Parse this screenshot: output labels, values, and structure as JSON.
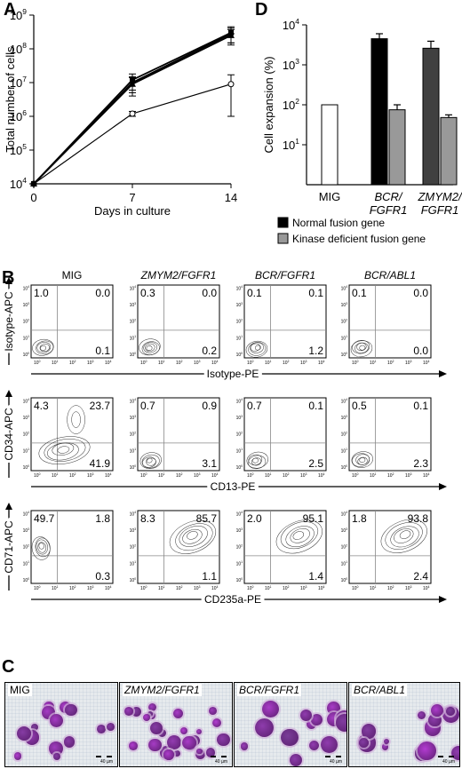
{
  "figure": {
    "panel_labels": {
      "A": "A",
      "B": "B",
      "C": "C",
      "D": "D"
    }
  },
  "chart_data": [
    {
      "panel": "A",
      "type": "line",
      "xlabel": "Days in culture",
      "ylabel": "Total number of cells",
      "x": [
        0,
        7,
        14
      ],
      "x_ticks": [
        "0",
        "7",
        "14"
      ],
      "y_scale": "log",
      "ylim": [
        10000,
        1000000000
      ],
      "y_ticks": [
        "10^4",
        "10^5",
        "10^6",
        "10^7",
        "10^8",
        "10^9"
      ],
      "series": [
        {
          "marker": "open-circle",
          "values": [
            10000,
            1200000,
            9000000
          ],
          "err": [
            0,
            200000,
            8000000
          ]
        },
        {
          "marker": "filled-square",
          "values": [
            10000,
            12000000,
            300000000
          ],
          "err": [
            0,
            6000000,
            150000000
          ]
        },
        {
          "marker": "filled-triangle",
          "values": [
            10000,
            9000000,
            250000000
          ],
          "err": [
            0,
            5000000,
            120000000
          ]
        },
        {
          "marker": "filled-diamond",
          "values": [
            10000,
            10000000,
            280000000
          ],
          "err": [
            0,
            5000000,
            130000000
          ]
        }
      ]
    },
    {
      "panel": "D",
      "type": "bar",
      "ylabel": "Cell expansion (%)",
      "y_scale": "log",
      "ylim": [
        1,
        10000
      ],
      "y_ticks": [
        "10^1",
        "10^2",
        "10^3",
        "10^4"
      ],
      "categories": [
        {
          "line1": "MIG",
          "line2": "",
          "italic": false
        },
        {
          "line1": "BCR/",
          "line2": "FGFR1",
          "italic": true
        },
        {
          "line1": "ZMYM2/",
          "line2": "FGFR1",
          "italic": true
        }
      ],
      "bars": [
        {
          "group": 0,
          "fill": "#ffffff",
          "value": 100,
          "err": 0
        },
        {
          "group": 1,
          "fill": "#000000",
          "value": 4500,
          "err": 1500
        },
        {
          "group": 1,
          "fill": "#999999",
          "value": 75,
          "err": 25
        },
        {
          "group": 2,
          "fill": "#404040",
          "value": 2600,
          "err": 1300
        },
        {
          "group": 2,
          "fill": "#999999",
          "value": 48,
          "err": 8
        }
      ],
      "legend": [
        {
          "label": "Normal fusion gene",
          "color": "#000000"
        },
        {
          "label": "Kinase deficient fusion gene",
          "color": "#999999"
        }
      ]
    },
    {
      "panel": "B",
      "type": "scatter",
      "columns": [
        {
          "title": "MIG",
          "italic": false
        },
        {
          "title": "ZMYM2/FGFR1",
          "italic": true
        },
        {
          "title": "BCR/FGFR1",
          "italic": true
        },
        {
          "title": "BCR/ABL1",
          "italic": true
        }
      ],
      "rows": [
        {
          "ylabel": "Isotype-APC",
          "xlabel": "Isotype-PE",
          "quadrants": [
            [
              "1.0",
              "0.0",
              "0.1"
            ],
            [
              "0.3",
              "0.0",
              "0.2"
            ],
            [
              "0.1",
              "0.1",
              "1.2"
            ],
            [
              "0.1",
              "0.0",
              "0.0"
            ]
          ]
        },
        {
          "ylabel": "CD34-APC",
          "xlabel": "CD13-PE",
          "quadrants": [
            [
              "4.3",
              "23.7",
              "41.9"
            ],
            [
              "0.7",
              "0.9",
              "3.1"
            ],
            [
              "0.7",
              "0.1",
              "2.5"
            ],
            [
              "0.5",
              "0.1",
              "2.3"
            ]
          ]
        },
        {
          "ylabel": "CD71-APC",
          "xlabel": "CD235a-PE",
          "quadrants": [
            [
              "49.7",
              "1.8",
              "0.3"
            ],
            [
              "8.3",
              "85.7",
              "1.1"
            ],
            [
              "2.0",
              "95.1",
              "1.4"
            ],
            [
              "1.8",
              "93.8",
              "2.4"
            ]
          ]
        }
      ],
      "axis_ticks": [
        "10^0",
        "10^1",
        "10^2",
        "10^3",
        "10^4"
      ]
    }
  ],
  "micrographs": [
    {
      "label": "MIG",
      "italic": false,
      "scale": "40 µm"
    },
    {
      "label": "ZMYM2/FGFR1",
      "italic": true,
      "scale": "40 µm"
    },
    {
      "label": "BCR/FGFR1",
      "italic": true,
      "scale": "40 µm"
    },
    {
      "label": "BCR/ABL1",
      "italic": true,
      "scale": "40 µm"
    }
  ]
}
